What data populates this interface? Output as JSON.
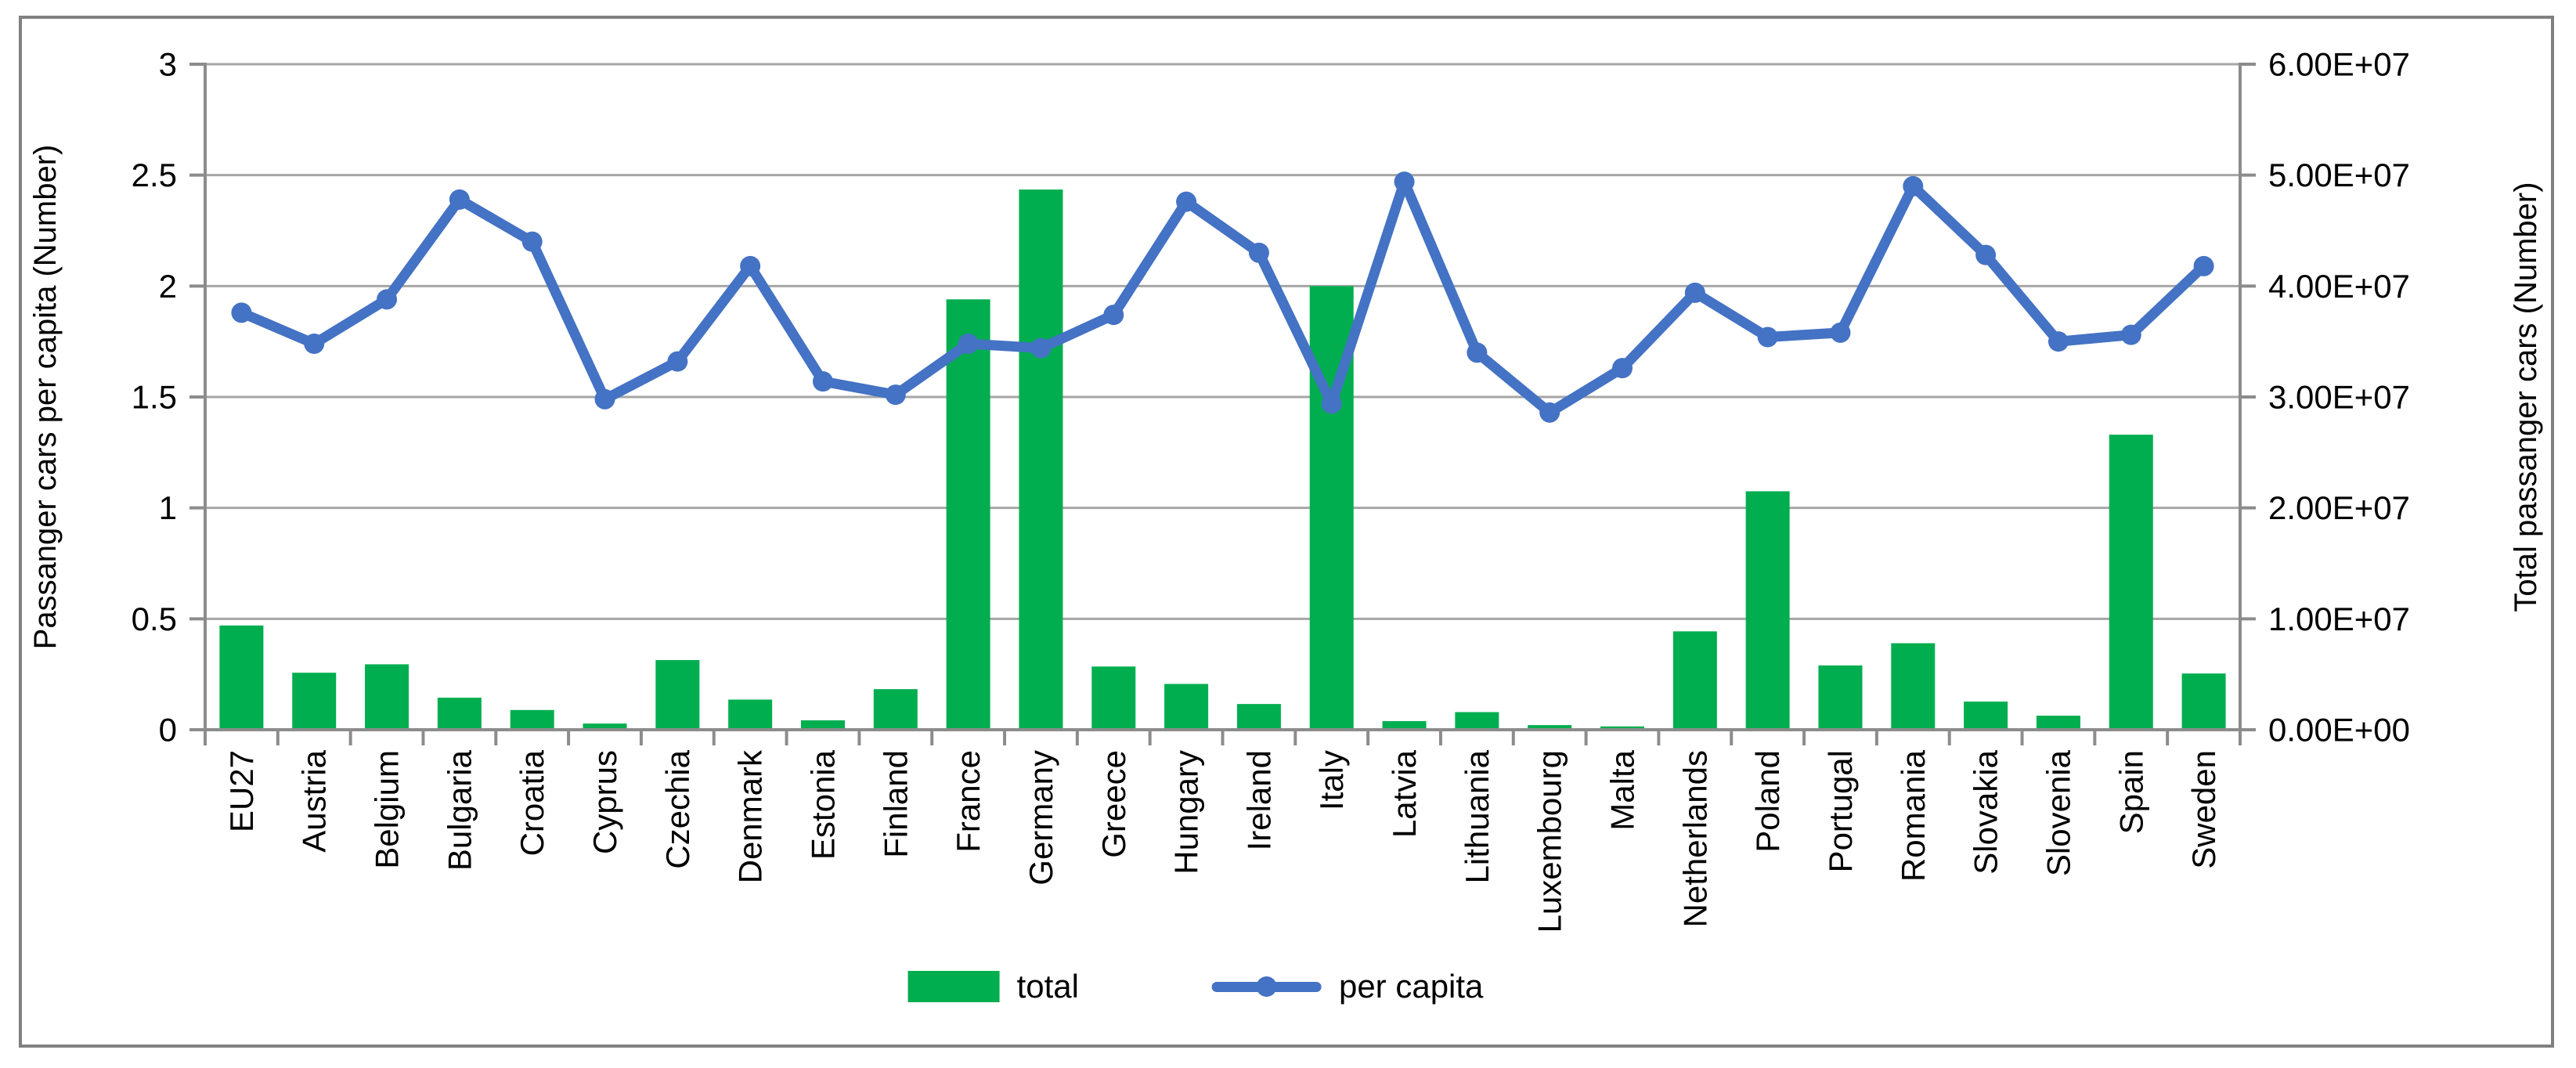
{
  "chart_data": {
    "type": "bar+line",
    "categories": [
      "EU27",
      "Austria",
      "Belgium",
      "Bulgaria",
      "Croatia",
      "Cyprus",
      "Czechia",
      "Denmark",
      "Estonia",
      "Finland",
      "France",
      "Germany",
      "Greece",
      "Hungary",
      "Ireland",
      "Italy",
      "Latvia",
      "Lithuania",
      "Luxembourg",
      "Malta",
      "Netherlands",
      "Poland",
      "Portugal",
      "Romania",
      "Slovakia",
      "Slovenia",
      "Spain",
      "Sweden"
    ],
    "series": [
      {
        "name": "total",
        "type": "bar",
        "axis": "right",
        "color": "#00AE4F",
        "values": [
          9400000,
          5140000,
          5900000,
          2890000,
          1780000,
          560000,
          6280000,
          2720000,
          850000,
          3660000,
          38800000,
          48700000,
          5700000,
          4130000,
          2320000,
          40000000,
          780000,
          1590000,
          420000,
          300000,
          8870000,
          21500000,
          5800000,
          7800000,
          2540000,
          1270000,
          26600000,
          5070000
        ]
      },
      {
        "name": "per capita",
        "type": "line",
        "axis": "left",
        "color": "#4472C4",
        "values": [
          1.88,
          1.74,
          1.94,
          2.39,
          2.2,
          1.49,
          1.66,
          2.09,
          1.57,
          1.51,
          1.74,
          1.72,
          1.87,
          2.38,
          2.15,
          1.47,
          2.47,
          1.7,
          1.43,
          1.63,
          1.97,
          1.77,
          1.79,
          2.45,
          2.14,
          1.75,
          1.78,
          2.09
        ]
      }
    ],
    "left_axis": {
      "label": "Passanger cars per capita (Number)",
      "min": 0,
      "max": 3,
      "ticks": [
        "0",
        "0.5",
        "1",
        "1.5",
        "2",
        "2.5",
        "3"
      ]
    },
    "right_axis": {
      "label": "Total passanger cars (Number)",
      "min": 0,
      "max": 60000000,
      "ticks": [
        "0.00E+00",
        "1.00E+07",
        "2.00E+07",
        "3.00E+07",
        "4.00E+07",
        "5.00E+07",
        "6.00E+07"
      ]
    },
    "legend": [
      {
        "label": "total"
      },
      {
        "label": "per capita"
      }
    ],
    "grid": true,
    "legend_position": "bottom",
    "colors": {
      "grid": "#A6A6A6",
      "axis": "#8C8C8C",
      "border": "#808080",
      "text": "#000000",
      "background": "#FFFFFF"
    }
  }
}
